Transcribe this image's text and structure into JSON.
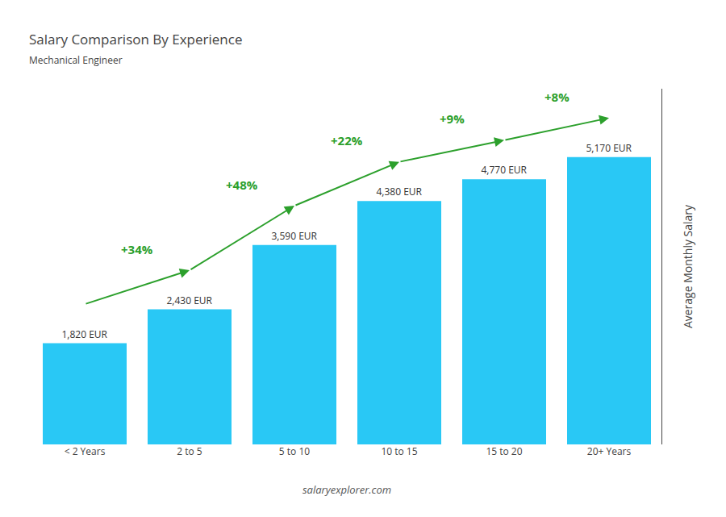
{
  "chart_data": {
    "type": "bar",
    "title": "Salary Comparison By Experience",
    "subtitle": "Mechanical Engineer",
    "categories": [
      "< 2 Years",
      "2 to 5",
      "5 to 10",
      "10 to 15",
      "15 to 20",
      "20+ Years"
    ],
    "values": [
      1820,
      2430,
      3590,
      4380,
      4770,
      5170
    ],
    "value_labels": [
      "1,820 EUR",
      "2,430 EUR",
      "3,590 EUR",
      "4,380 EUR",
      "4,770 EUR",
      "5,170 EUR"
    ],
    "data_labels": true,
    "color": "#29c8f5",
    "ylabel": "Average Monthly Salary",
    "ylim": [
      0,
      6400
    ],
    "yticks": [],
    "grid": false,
    "tick_labels": "x",
    "annotations": [
      "+34%",
      "+48%",
      "+22%",
      "+9%",
      "+8%"
    ],
    "footer": "salaryexplorer.com"
  }
}
